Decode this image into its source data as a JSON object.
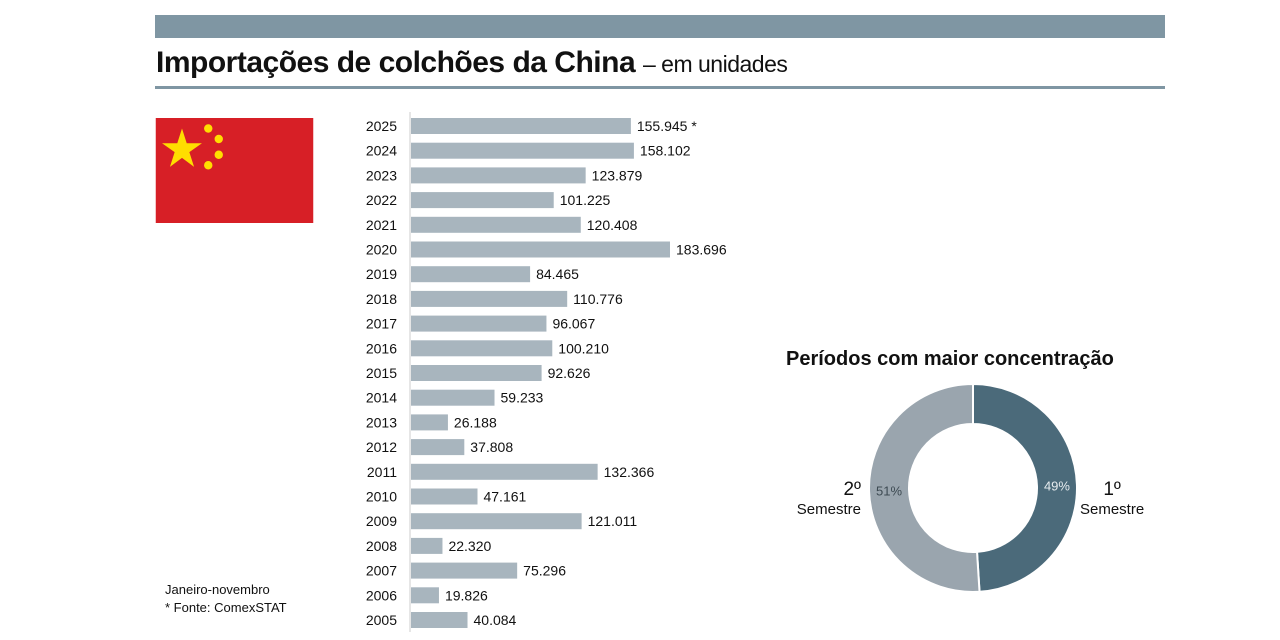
{
  "header": {
    "title": "Importações de colchões da China",
    "subtitle": "– em unidades"
  },
  "notes": {
    "period": "Janeiro-novembro",
    "source": "* Fonte: ComexSTAT"
  },
  "colors": {
    "bar": "#a8b5be",
    "first": "#4b6a7a",
    "second": "#9aa5ae",
    "flag_red": "#d71f26",
    "flag_star": "#ffde00"
  },
  "chart_data": [
    {
      "type": "bar",
      "orientation": "horizontal",
      "title": "Importações de colchões da China – em unidades",
      "categories": [
        "2025",
        "2024",
        "2023",
        "2022",
        "2021",
        "2020",
        "2019",
        "2018",
        "2017",
        "2016",
        "2015",
        "2014",
        "2013",
        "2012",
        "2011",
        "2010",
        "2009",
        "2008",
        "2007",
        "2006",
        "2005"
      ],
      "values": [
        155945,
        158102,
        123879,
        101225,
        120408,
        183696,
        84465,
        110776,
        96067,
        100210,
        92626,
        59233,
        26188,
        37808,
        132366,
        47161,
        121011,
        22320,
        75296,
        19826,
        40084
      ],
      "labels": [
        "155.945 *",
        "158.102",
        "123.879",
        "101.225",
        "120.408",
        "183.696",
        "84.465",
        "110.776",
        "96.067",
        "100.210",
        "92.626",
        "59.233",
        "26.188",
        "37.808",
        "132.366",
        "47.161",
        "121.011",
        "22.320",
        "75.296",
        "19.826",
        "40.084"
      ]
    },
    {
      "type": "pie",
      "title": "Períodos com maior concentração",
      "slices": [
        {
          "name": "1º",
          "name2": "Semestre",
          "value": 49,
          "label": "49%"
        },
        {
          "name": "2º",
          "name2": "Semestre",
          "value": 51,
          "label": "51%"
        }
      ]
    }
  ]
}
